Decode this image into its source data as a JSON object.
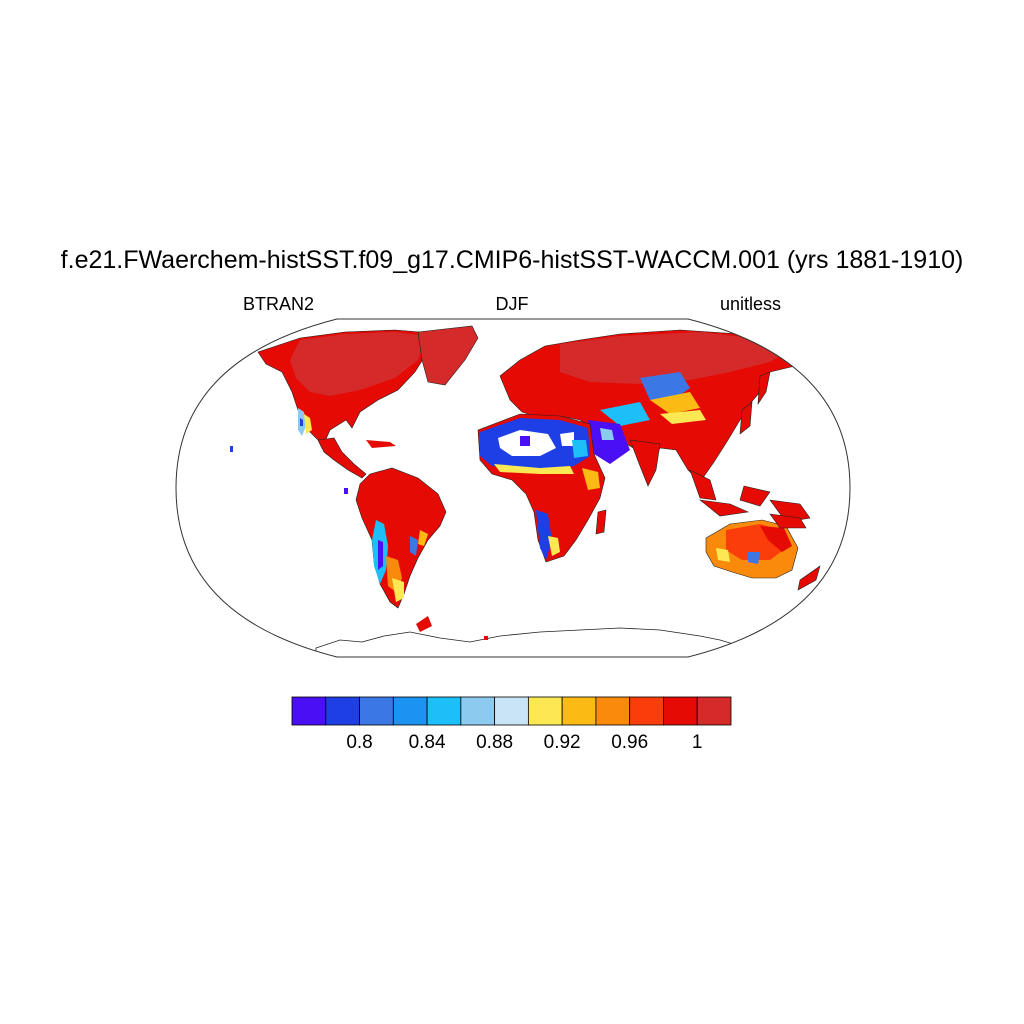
{
  "header": {
    "title": "f.e21.FWaerchem-histSST.f09_g17.CMIP6-histSST-WACCM.001 (yrs 1881-1910)",
    "left_label": "BTRAN2",
    "center_label": "DJF",
    "right_label": "unitless"
  },
  "colorbar": {
    "colors": [
      "#4b0ff5",
      "#1e3fe6",
      "#3b78e6",
      "#1b93f0",
      "#1cbff7",
      "#8dcaf0",
      "#c8e4f5",
      "#fbe853",
      "#fbbb14",
      "#fa8a0c",
      "#fa3d0a",
      "#e60a05",
      "#d42a2a"
    ],
    "tick_labels": [
      "0.8",
      "0.84",
      "0.88",
      "0.92",
      "0.96",
      "1"
    ]
  }
}
